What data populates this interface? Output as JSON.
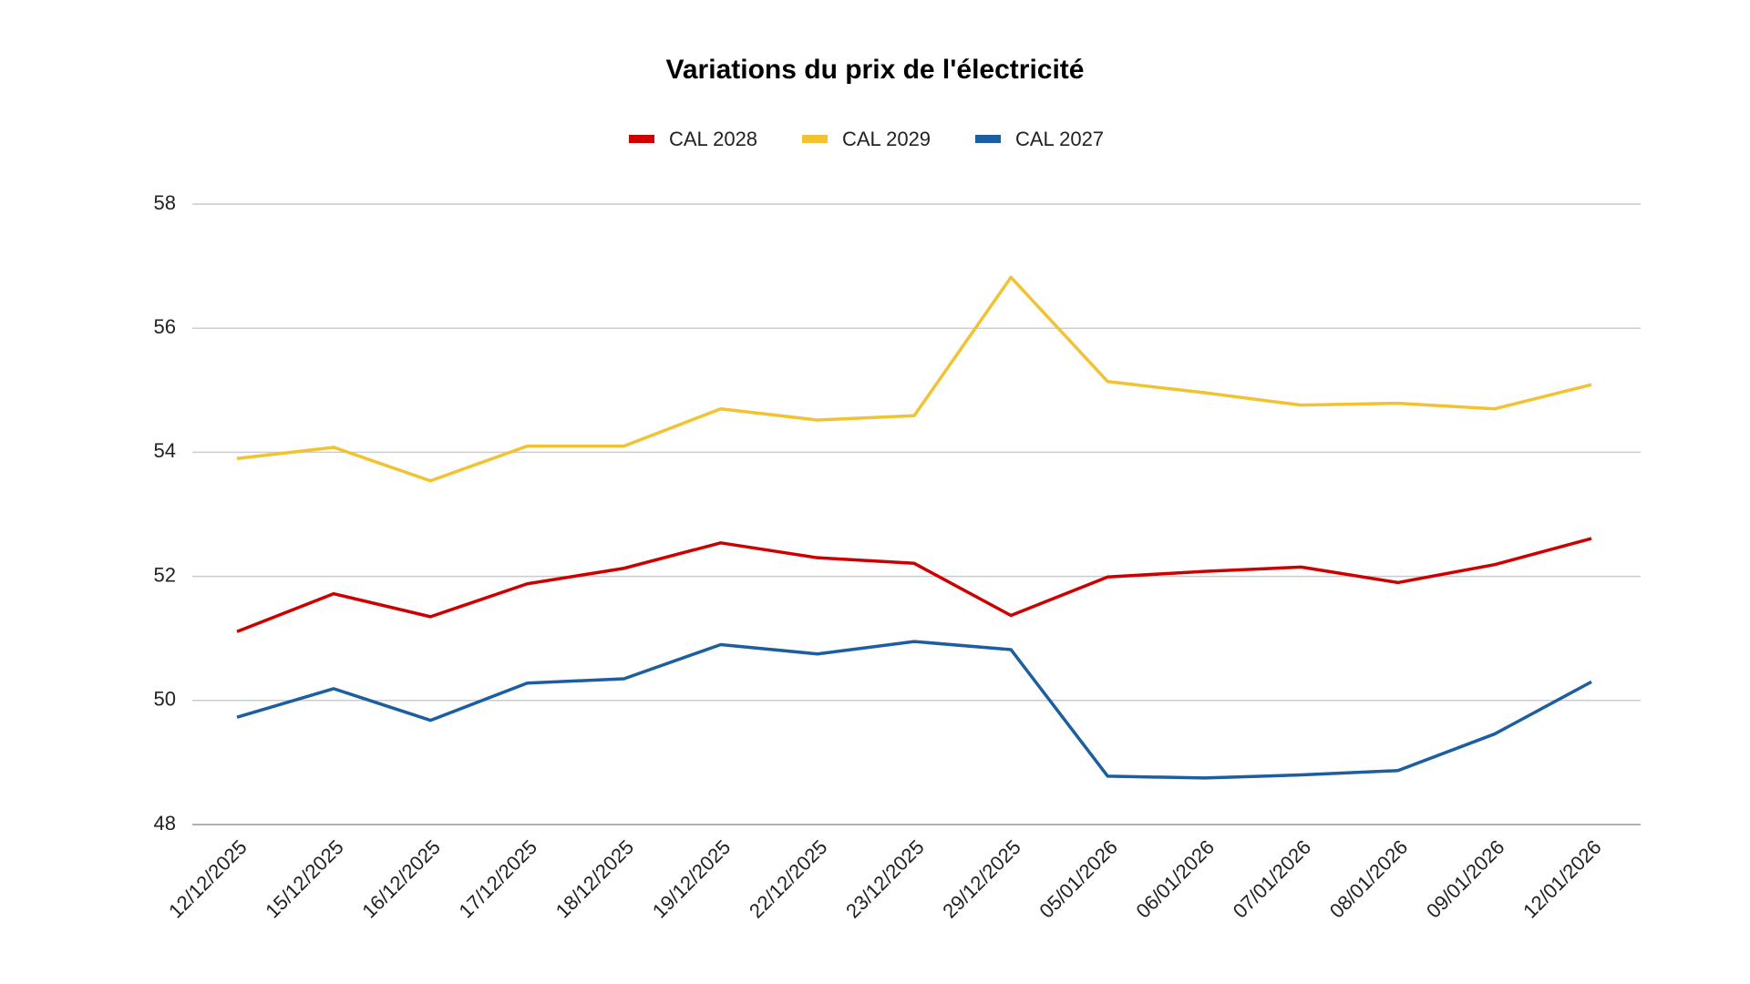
{
  "chart_data": {
    "type": "line",
    "title": "Variations du prix de l'électricité",
    "categories": [
      "12/12/2025",
      "15/12/2025",
      "16/12/2025",
      "17/12/2025",
      "18/12/2025",
      "19/12/2025",
      "22/12/2025",
      "23/12/2025",
      "29/12/2025",
      "05/01/2026",
      "06/01/2026",
      "07/01/2026",
      "08/01/2026",
      "09/01/2026",
      "12/01/2026"
    ],
    "series": [
      {
        "name": "CAL 2028",
        "color": "#cc0000",
        "values": [
          51.11,
          51.72,
          51.35,
          51.88,
          52.13,
          52.54,
          52.3,
          52.21,
          51.37,
          51.99,
          52.08,
          52.15,
          51.9,
          52.19,
          52.61
        ]
      },
      {
        "name": "CAL 2029",
        "color": "#f1c232",
        "values": [
          53.9,
          54.08,
          53.54,
          54.1,
          54.1,
          54.7,
          54.52,
          54.59,
          56.82,
          55.14,
          54.96,
          54.76,
          54.79,
          54.7,
          55.09
        ]
      },
      {
        "name": "CAL 2027",
        "color": "#1c5e9f",
        "values": [
          49.73,
          50.19,
          49.68,
          50.28,
          50.35,
          50.9,
          50.75,
          50.95,
          50.82,
          48.78,
          48.75,
          48.8,
          48.87,
          49.46,
          50.3
        ]
      }
    ],
    "ylim": [
      48,
      58
    ],
    "yticks": [
      48,
      50,
      52,
      54,
      56,
      58
    ],
    "grid": true
  }
}
